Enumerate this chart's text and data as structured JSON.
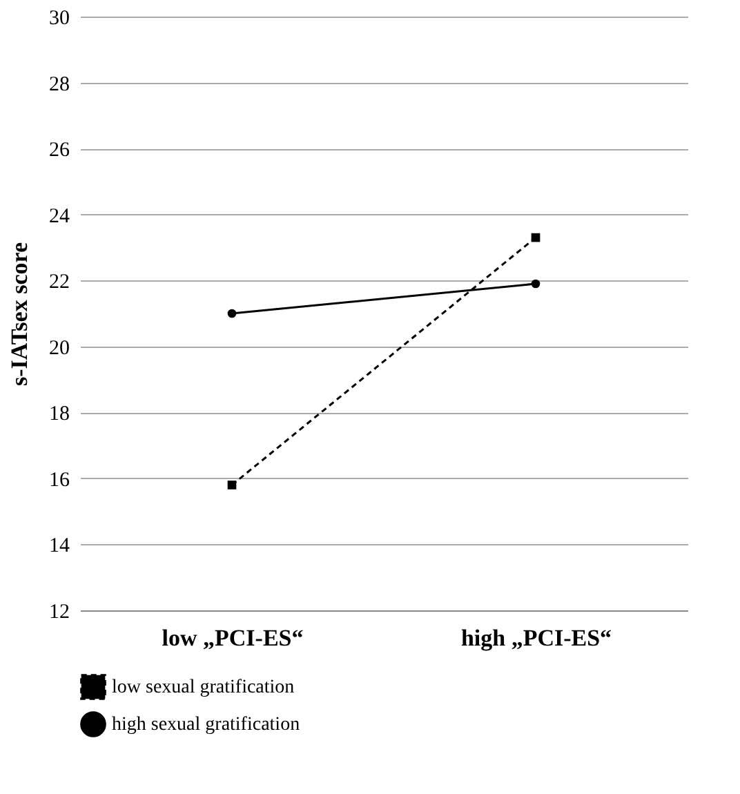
{
  "chart_data": {
    "type": "line",
    "ylabel": "s-IATsex score",
    "categories": [
      "low „PCI-ES“",
      "high „PCI-ES“"
    ],
    "series": [
      {
        "name": "low sexual gratification",
        "color": "#000000",
        "values": [
          15.8,
          23.3
        ],
        "line_style": "dashed",
        "marker": "square"
      },
      {
        "name": "high sexual gratification",
        "color": "#000000",
        "values": [
          21.0,
          21.9
        ],
        "line_style": "solid",
        "marker": "circle"
      }
    ],
    "ylim": [
      12,
      30
    ],
    "yticks": [
      12,
      14,
      16,
      18,
      20,
      22,
      24,
      26,
      28,
      30
    ],
    "grid": "y",
    "legend": "bottom"
  }
}
